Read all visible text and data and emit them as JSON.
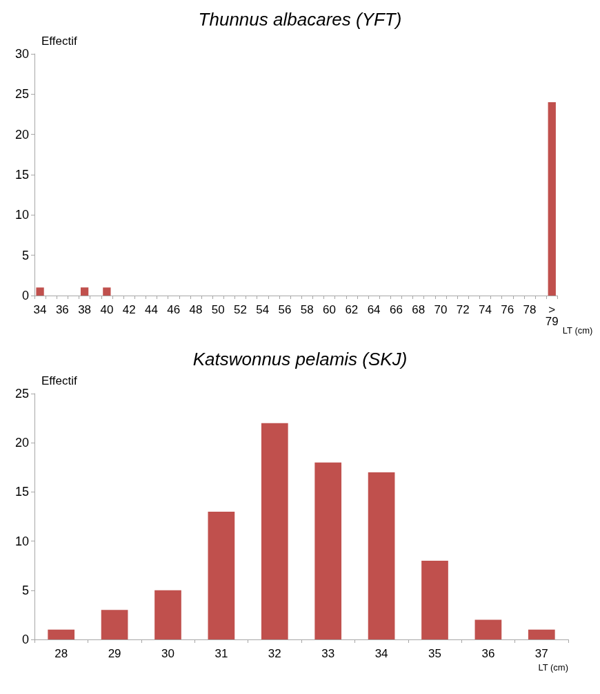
{
  "chart_data": [
    {
      "type": "bar",
      "title": "Thunnus albacares (YFT)",
      "ylabel": "Effectif",
      "xlabel": "LT (cm)",
      "categories": [
        "34",
        null,
        "36",
        null,
        "38",
        null,
        "40",
        null,
        "42",
        null,
        "44",
        null,
        "46",
        null,
        "48",
        null,
        "50",
        null,
        "52",
        null,
        "54",
        null,
        "56",
        null,
        "58",
        null,
        "60",
        null,
        "62",
        null,
        "64",
        null,
        "66",
        null,
        "68",
        null,
        "70",
        null,
        "72",
        null,
        "74",
        null,
        "76",
        null,
        "78",
        null,
        "> 79"
      ],
      "values": [
        1,
        0,
        0,
        0,
        1,
        0,
        1,
        0,
        0,
        0,
        0,
        0,
        0,
        0,
        0,
        0,
        0,
        0,
        0,
        0,
        0,
        0,
        0,
        0,
        0,
        0,
        0,
        0,
        0,
        0,
        0,
        0,
        0,
        0,
        0,
        0,
        0,
        0,
        0,
        0,
        0,
        0,
        0,
        0,
        0,
        0,
        24
      ],
      "color": "#c0504d",
      "ylim": [
        0,
        30
      ],
      "yticks": [
        0,
        5,
        10,
        15,
        20,
        25,
        30
      ],
      "grid": false
    },
    {
      "type": "bar",
      "title": "Katswonnus pelamis (SKJ)",
      "ylabel": "Effectif",
      "xlabel": "LT (cm)",
      "categories": [
        "28",
        "29",
        "30",
        "31",
        "32",
        "33",
        "34",
        "35",
        "36",
        "37"
      ],
      "values": [
        1,
        3,
        5,
        13,
        22,
        18,
        17,
        8,
        2,
        1
      ],
      "color": "#c0504d",
      "ylim": [
        0,
        25
      ],
      "yticks": [
        0,
        5,
        10,
        15,
        20,
        25
      ],
      "grid": false
    }
  ]
}
